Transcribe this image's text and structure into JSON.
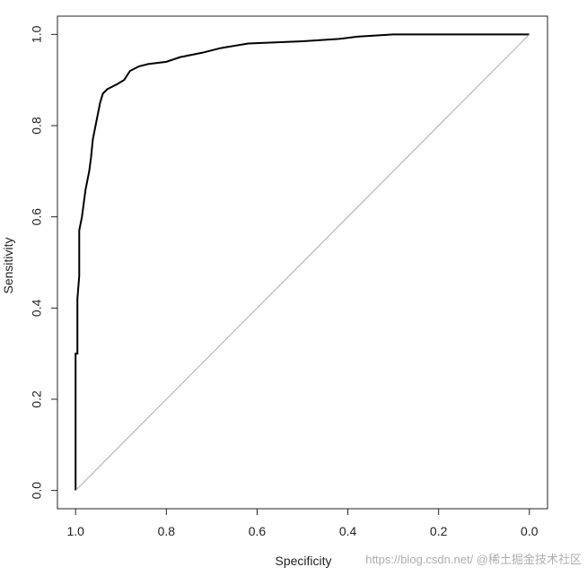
{
  "chart_data": {
    "type": "line",
    "xlabel": "Specificity",
    "ylabel": "Sensitivity",
    "xlim": [
      1.04,
      -0.04
    ],
    "ylim": [
      -0.04,
      1.04
    ],
    "xticks": [
      {
        "value": 1,
        "label": "1.0"
      },
      {
        "value": 0.8,
        "label": "0.8"
      },
      {
        "value": 0.6,
        "label": "0.6"
      },
      {
        "value": 0.4,
        "label": "0.4"
      },
      {
        "value": 0.2,
        "label": "0.2"
      },
      {
        "value": 0,
        "label": "0.0"
      }
    ],
    "yticks": [
      {
        "value": 0,
        "label": "0.0"
      },
      {
        "value": 0.2,
        "label": "0.2"
      },
      {
        "value": 0.4,
        "label": "0.4"
      },
      {
        "value": 0.6,
        "label": "0.6"
      },
      {
        "value": 0.8,
        "label": "0.8"
      },
      {
        "value": 1,
        "label": "1.0"
      }
    ],
    "series": [
      {
        "color": "#000000",
        "x": [
          1,
          1,
          0.996,
          0.996,
          0.992,
          0.992,
          0.986,
          0.982,
          0.978,
          0.974,
          0.97,
          0.966,
          0.962,
          0.956,
          0.95,
          0.946,
          0.94,
          0.93,
          0.91,
          0.893,
          0.88,
          0.86,
          0.84,
          0.8,
          0.77,
          0.72,
          0.68,
          0.62,
          0.5,
          0.42,
          0.38,
          0.3,
          0
        ],
        "values": [
          0,
          0.3,
          0.3,
          0.42,
          0.47,
          0.57,
          0.6,
          0.63,
          0.66,
          0.68,
          0.7,
          0.73,
          0.77,
          0.8,
          0.83,
          0.85,
          0.87,
          0.88,
          0.89,
          0.9,
          0.92,
          0.93,
          0.935,
          0.94,
          0.95,
          0.96,
          0.97,
          0.98,
          0.985,
          0.99,
          0.995,
          1,
          1
        ]
      },
      {
        "color": "#aaaaaa",
        "x": [
          1,
          0
        ],
        "values": [
          0,
          1
        ]
      }
    ],
    "watermark": "https://blog.csdn.net/  @稀土掘金技术社区"
  }
}
